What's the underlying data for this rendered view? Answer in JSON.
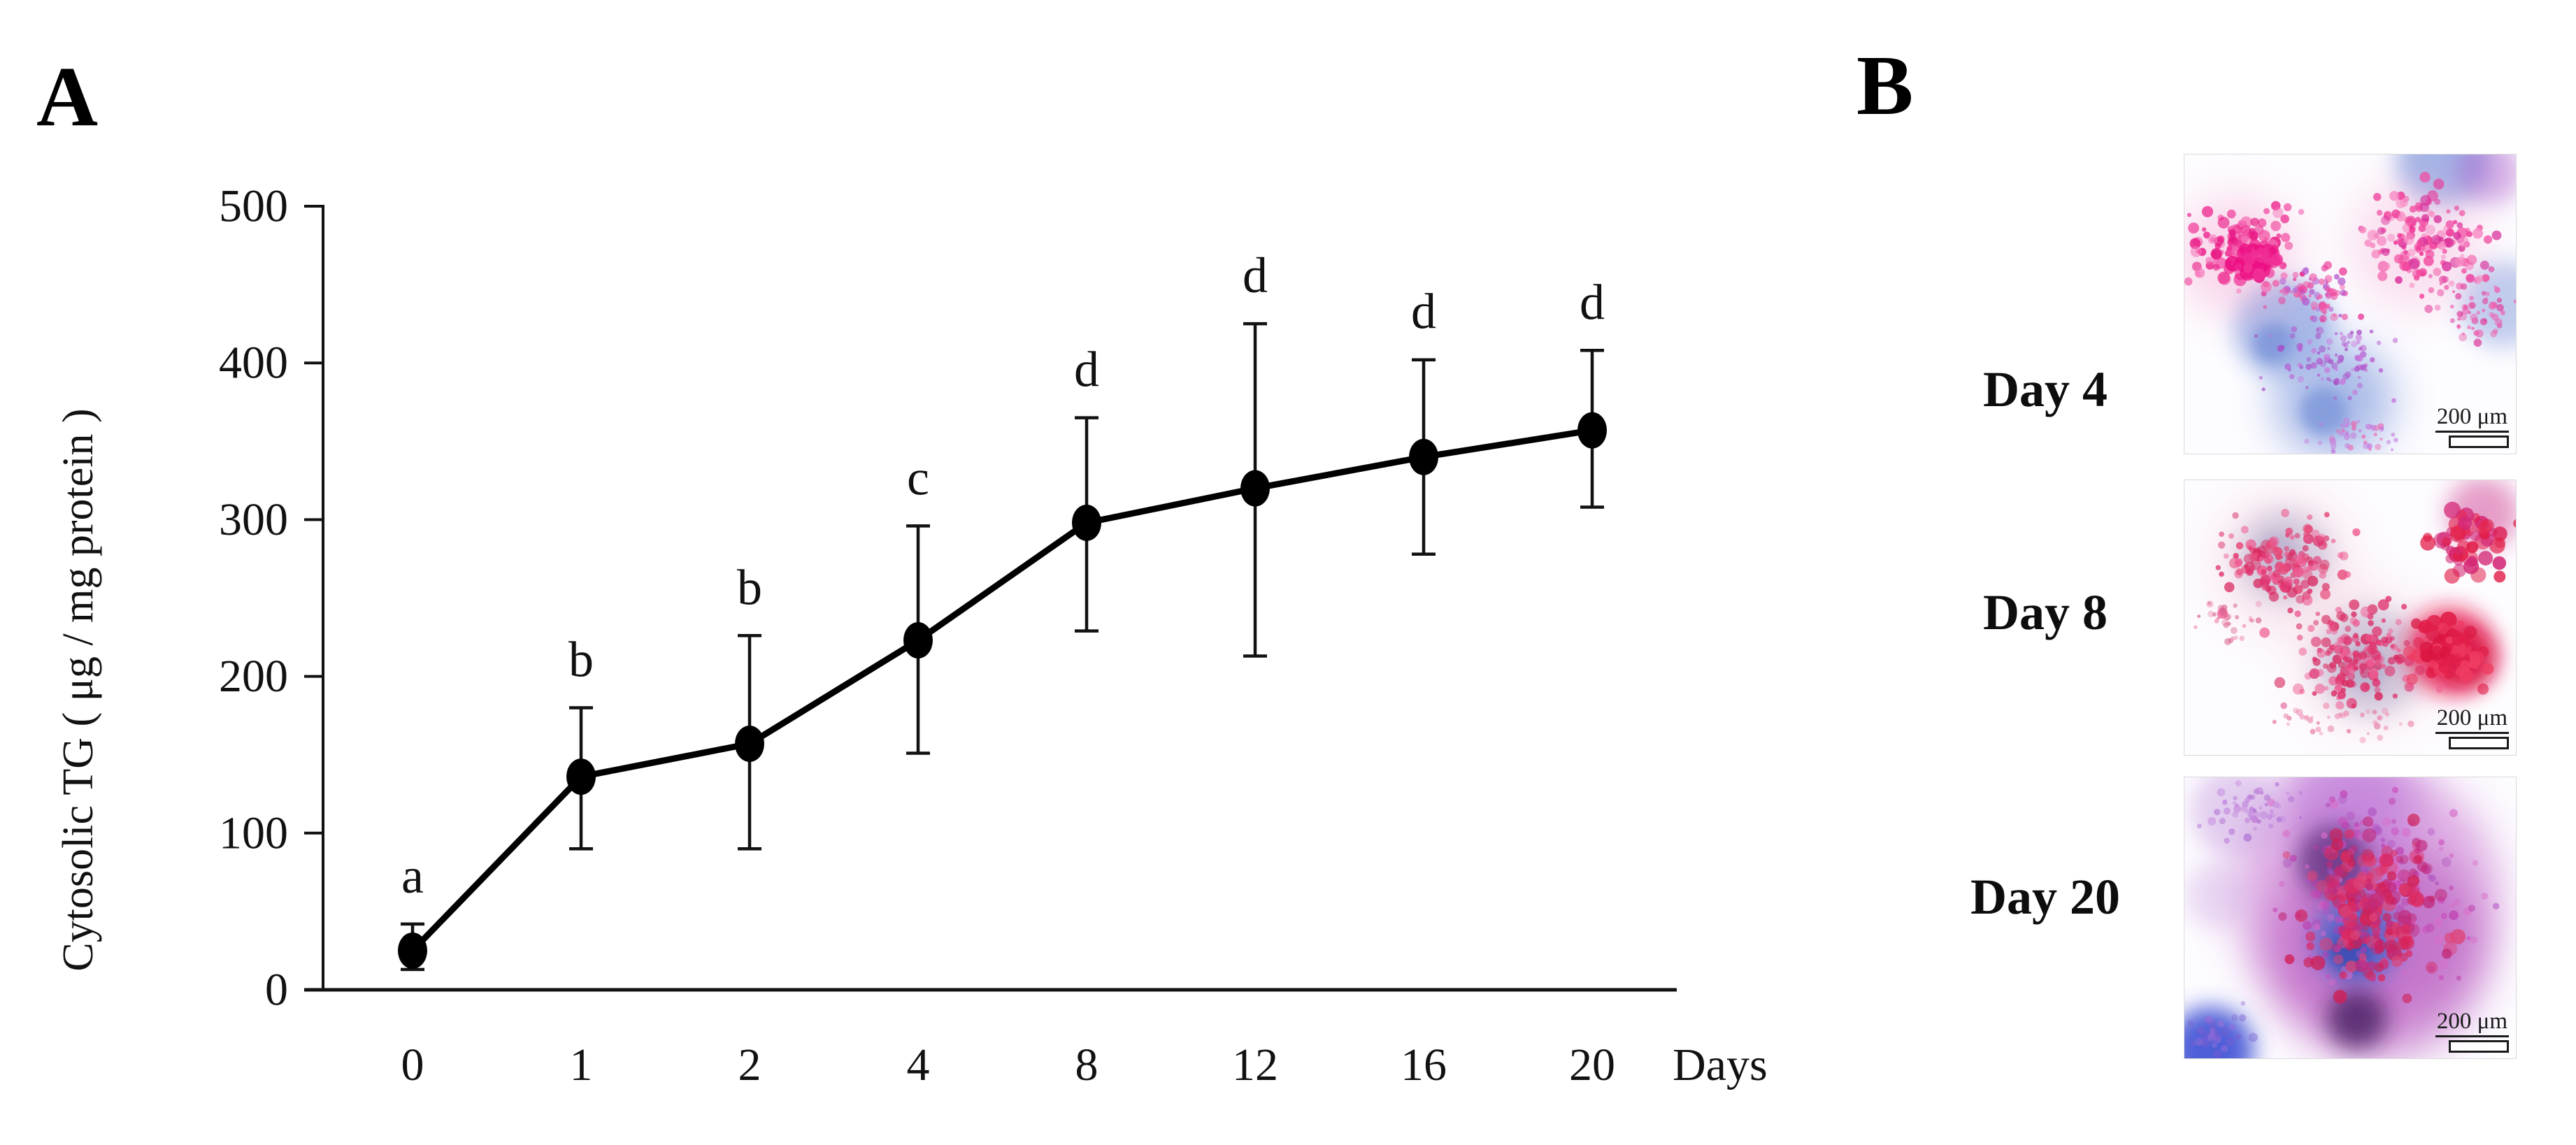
{
  "panels": {
    "a_label": "A",
    "b_label": "B"
  },
  "chart_data": {
    "type": "line",
    "title": "",
    "xlabel": "Days",
    "ylabel": "Cytosolic TG ( μg / mg protein )",
    "x_axis_suffix_label": "Days",
    "x_tick_labels": [
      "0",
      "1",
      "2",
      "4",
      "8",
      "12",
      "16",
      "20"
    ],
    "x_values_days": [
      0,
      1,
      2,
      4,
      8,
      12,
      16,
      20
    ],
    "x_scale": "categorical-equal-spacing",
    "y_ticks": [
      0,
      100,
      200,
      300,
      400,
      500
    ],
    "ylim": [
      0,
      500
    ],
    "grid": false,
    "legend": "none",
    "series": [
      {
        "name": "Cytosolic TG",
        "values": [
          25,
          136,
          157,
          223,
          298,
          320,
          340,
          357
        ],
        "error_bar_top": [
          42,
          180,
          226,
          296,
          365,
          425,
          402,
          408
        ],
        "error_bar_bottom": [
          13,
          90,
          90,
          151,
          229,
          213,
          278,
          308
        ],
        "significance_letters": [
          "a",
          "b",
          "b",
          "c",
          "d",
          "d",
          "d",
          "d"
        ],
        "marker": "filled-ellipse",
        "color": "#000000"
      }
    ]
  },
  "panel_b": {
    "rows": [
      {
        "label": "Day 4",
        "scale_bar": "200 μm",
        "palette": [
          "#ee2d92",
          "#b558cf",
          "#93a9e2"
        ]
      },
      {
        "label": "Day 8",
        "scale_bar": "200 μm",
        "palette": [
          "#e11d48",
          "#e0336e",
          "#bfc8dd"
        ]
      },
      {
        "label": "Day 20",
        "scale_bar": "200 μm",
        "palette": [
          "#c05ec8",
          "#dd2a62",
          "#5063c8"
        ]
      }
    ]
  }
}
